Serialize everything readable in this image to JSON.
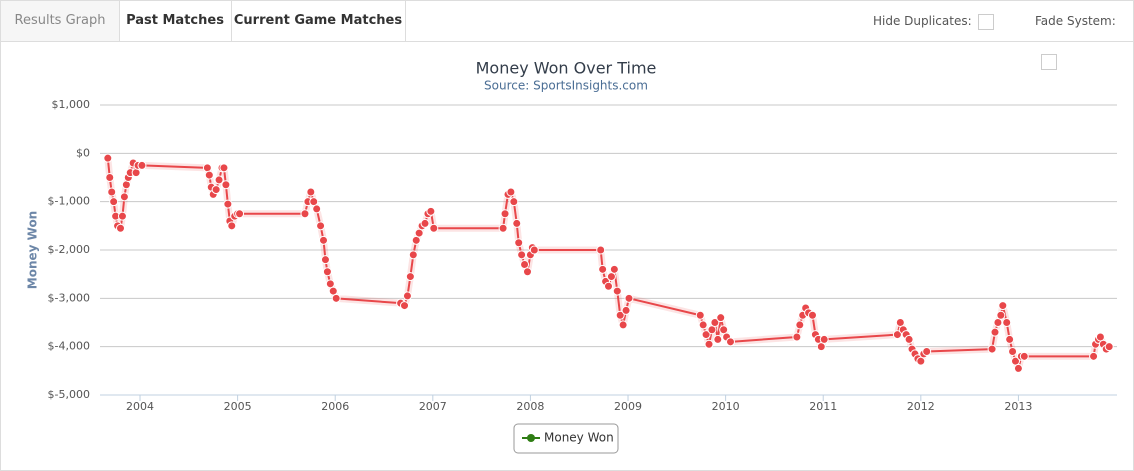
{
  "tabs": [
    "Results Graph",
    "Past Matches",
    "Current Game Matches"
  ],
  "options": [
    "Hide Duplicates:",
    "Fade System:"
  ],
  "chart_data": {
    "type": "line",
    "title": "Money Won Over Time",
    "subtitle": "Source: SportsInsights.com",
    "y_label": "Money Won",
    "xlim": [
      2003.59,
      2014.01
    ],
    "xticks": [
      2004,
      2005,
      2006,
      2007,
      2008,
      2009,
      2010,
      2011,
      2012,
      2013
    ],
    "ylim": [
      -5000,
      1000
    ],
    "yticks": [
      {
        "value": -5000,
        "label": "$-5,000"
      },
      {
        "value": -4000,
        "label": "$-4,000"
      },
      {
        "value": -3000,
        "label": "$-3,000"
      },
      {
        "value": -2000,
        "label": "$-2,000"
      },
      {
        "value": -1000,
        "label": "$-1,000"
      },
      {
        "value": 0,
        "label": "$0"
      },
      {
        "value": 1000,
        "label": "$1,000"
      }
    ],
    "grid": true,
    "legend_color": "#2f7d14",
    "series": [
      {
        "name": "Money Won",
        "color": "#e8474a",
        "x": [
          2003.67,
          2003.69,
          2003.71,
          2003.73,
          2003.75,
          2003.77,
          2003.8,
          2003.82,
          2003.84,
          2003.86,
          2003.88,
          2003.9,
          2003.93,
          2003.96,
          2003.98,
          2004.02,
          2004.69,
          2004.71,
          2004.73,
          2004.75,
          2004.78,
          2004.81,
          2004.84,
          2004.86,
          2004.88,
          2004.9,
          2004.92,
          2004.94,
          2004.97,
          2005.0,
          2005.02,
          2005.69,
          2005.72,
          2005.75,
          2005.78,
          2005.81,
          2005.85,
          2005.88,
          2005.9,
          2005.92,
          2005.95,
          2005.98,
          2006.01,
          2006.67,
          2006.71,
          2006.74,
          2006.77,
          2006.8,
          2006.83,
          2006.86,
          2006.89,
          2006.92,
          2006.95,
          2006.98,
          2007.01,
          2007.72,
          2007.74,
          2007.77,
          2007.8,
          2007.83,
          2007.86,
          2007.88,
          2007.91,
          2007.94,
          2007.97,
          2008.0,
          2008.02,
          2008.04,
          2008.72,
          2008.74,
          2008.77,
          2008.8,
          2008.83,
          2008.86,
          2008.89,
          2008.92,
          2008.95,
          2008.98,
          2009.01,
          2009.74,
          2009.77,
          2009.8,
          2009.83,
          2009.86,
          2009.89,
          2009.92,
          2009.95,
          2009.98,
          2010.01,
          2010.05,
          2010.73,
          2010.76,
          2010.79,
          2010.82,
          2010.85,
          2010.89,
          2010.92,
          2010.95,
          2010.98,
          2011.01,
          2011.76,
          2011.79,
          2011.82,
          2011.85,
          2011.88,
          2011.91,
          2011.94,
          2011.97,
          2012.0,
          2012.03,
          2012.06,
          2012.73,
          2012.76,
          2012.79,
          2012.82,
          2012.84,
          2012.88,
          2012.91,
          2012.94,
          2012.97,
          2013.0,
          2013.03,
          2013.06,
          2013.77,
          2013.79,
          2013.82,
          2013.84,
          2013.87,
          2013.9,
          2013.93
        ],
        "values": [
          -100,
          -500,
          -800,
          -1000,
          -1300,
          -1500,
          -1550,
          -1300,
          -900,
          -650,
          -500,
          -400,
          -200,
          -400,
          -250,
          -250,
          -300,
          -450,
          -700,
          -850,
          -750,
          -550,
          -300,
          -300,
          -650,
          -1050,
          -1400,
          -1500,
          -1300,
          -1250,
          -1250,
          -1250,
          -1000,
          -800,
          -1000,
          -1150,
          -1500,
          -1800,
          -2200,
          -2450,
          -2700,
          -2850,
          -3000,
          -3100,
          -3150,
          -2950,
          -2550,
          -2100,
          -1800,
          -1650,
          -1500,
          -1450,
          -1250,
          -1200,
          -1550,
          -1550,
          -1250,
          -850,
          -800,
          -1000,
          -1450,
          -1850,
          -2100,
          -2300,
          -2450,
          -2100,
          -1950,
          -2000,
          -2000,
          -2400,
          -2650,
          -2750,
          -2550,
          -2400,
          -2850,
          -3350,
          -3550,
          -3250,
          -3000,
          -3350,
          -3550,
          -3750,
          -3950,
          -3650,
          -3500,
          -3850,
          -3400,
          -3650,
          -3800,
          -3900,
          -3800,
          -3550,
          -3350,
          -3200,
          -3300,
          -3350,
          -3750,
          -3850,
          -4000,
          -3850,
          -3750,
          -3500,
          -3650,
          -3750,
          -3850,
          -4050,
          -4150,
          -4250,
          -4300,
          -4150,
          -4100,
          -4050,
          -3700,
          -3500,
          -3350,
          -3150,
          -3500,
          -3850,
          -4100,
          -4300,
          -4450,
          -4200,
          -4200,
          -4200,
          -3950,
          -3850,
          -3800,
          -3950,
          -4050,
          -4000
        ]
      }
    ]
  }
}
